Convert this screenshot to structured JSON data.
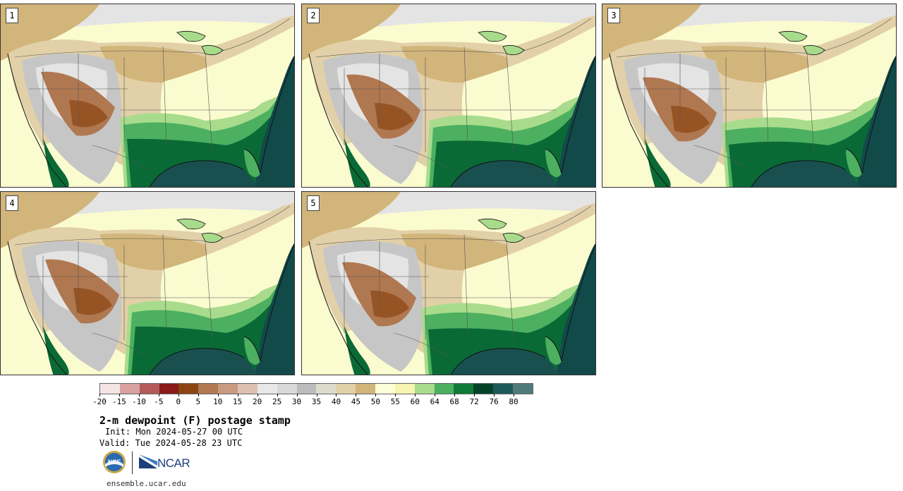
{
  "panels": [
    {
      "label": "1",
      "variant": 0
    },
    {
      "label": "2",
      "variant": 1
    },
    {
      "label": "3",
      "variant": 2
    },
    {
      "label": "4",
      "variant": 3
    },
    {
      "label": "5",
      "variant": 4
    }
  ],
  "colorbar": {
    "colors": [
      "#f4e4e4",
      "#d8a0a0",
      "#b35a5a",
      "#8b1a1a",
      "#8b4513",
      "#b07850",
      "#c89a80",
      "#ddc0b0",
      "#e8e8e8",
      "#d8d8d8",
      "#bcbcbc",
      "#dcdccc",
      "#e2d0a8",
      "#d2b57a",
      "#fdfdd8",
      "#f5f5b0",
      "#a8dc8c",
      "#4cb060",
      "#107a3a",
      "#06422a",
      "#1e5a5a",
      "#507a7a"
    ],
    "ticks": [
      "-20",
      "-15",
      "-10",
      "-5",
      "0",
      "5",
      "10",
      "15",
      "20",
      "25",
      "30",
      "35",
      "40",
      "45",
      "50",
      "55",
      "60",
      "64",
      "68",
      "72",
      "76",
      "80"
    ]
  },
  "title": "2-m dewpoint (F) postage stamp",
  "init": "Init: Mon 2024-05-27 00 UTC",
  "valid": "Valid: Tue 2024-05-28 23 UTC",
  "logos": {
    "nsf": "NSF",
    "ncar": "NCAR"
  },
  "url": "ensemble.ucar.edu",
  "colors": {
    "ocean_atlantic": "#124a4a",
    "gulf": "#1a4f50",
    "pacific": "#f8f8c0",
    "moist_green": "#0a6a36",
    "mid_green": "#4cb060",
    "light_green": "#a8dc8c",
    "pale_yellow": "#fbfbd0",
    "tan": "#d2b57a",
    "light_tan": "#e2d0a8",
    "gray": "#c6c6c6",
    "light_gray": "#e4e4e4",
    "brown": "#b07850",
    "dark_brown": "#8b4513"
  }
}
